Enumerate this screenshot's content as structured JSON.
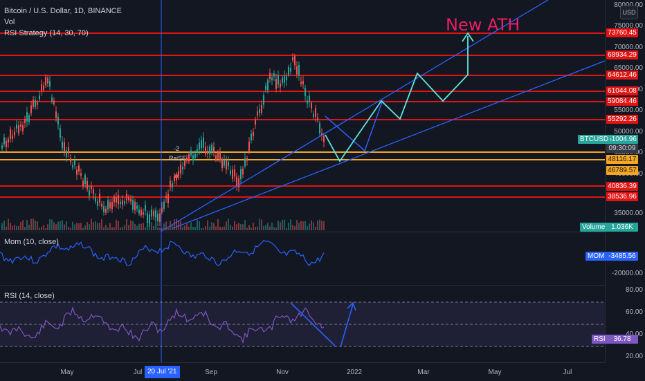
{
  "header": {
    "symbol_title": "Bitcoin / U.S. Dollar, 1D, BINANCE",
    "volume_label": "Vol",
    "strategy_label": "RSI Strategy (14, 30, 70)"
  },
  "annotation": {
    "new_ath": "New ATH",
    "signal_qty": "-2",
    "signal_name": "RsiSE"
  },
  "price_axis": {
    "currency_button": "USD",
    "ticks": [
      "80000.00",
      "75000.00",
      "70000.00",
      "65000.00",
      "60000.00",
      "55000.00",
      "50000.00",
      "45000.00",
      "40000.00",
      "35000.00"
    ],
    "levels": [
      {
        "label": "73760.45",
        "color": "#e11414"
      },
      {
        "label": "68934.29",
        "color": "#e11414"
      },
      {
        "label": "64612.46",
        "color": "#e11414"
      },
      {
        "label": "61044.08",
        "color": "#e11414"
      },
      {
        "label": "59084.46",
        "color": "#e11414"
      },
      {
        "label": "55292.26",
        "color": "#e11414"
      },
      {
        "label": "48116.17",
        "color": "#f5a623"
      },
      {
        "label": "46789.57",
        "color": "#f5a623"
      },
      {
        "label": "40836.39",
        "color": "#e11414"
      },
      {
        "label": "38536.96",
        "color": "#e11414"
      }
    ],
    "current": {
      "symbol": "BTCUSD",
      "price": "51004.96",
      "countdown": "09:30:09"
    },
    "volume": {
      "label": "Volume",
      "value": "1.036K"
    }
  },
  "mom_pane": {
    "title": "Mom (10, close)",
    "tick": "-20000.00",
    "tag_label": "MOM",
    "tag_value": "-3485.56"
  },
  "rsi_pane": {
    "title": "RSI (14, close)",
    "ticks": [
      "80.00",
      "60.00",
      "40.00",
      "20.00"
    ],
    "tag_label": "RSI",
    "tag_value": "36.78"
  },
  "time_axis": {
    "labels": [
      "May",
      "Jul",
      "Sep",
      "Nov",
      "2022",
      "Mar",
      "May",
      "Jul"
    ],
    "highlight": "20 Jul '21"
  },
  "colors": {
    "bg": "#131722",
    "up": "#26a69a",
    "down": "#ef5350",
    "level_red": "#e11414",
    "level_orange": "#f5a623",
    "trend_blue": "#2962ff",
    "path_cyan": "#5ee7df",
    "ath_text": "#e91e63"
  }
}
